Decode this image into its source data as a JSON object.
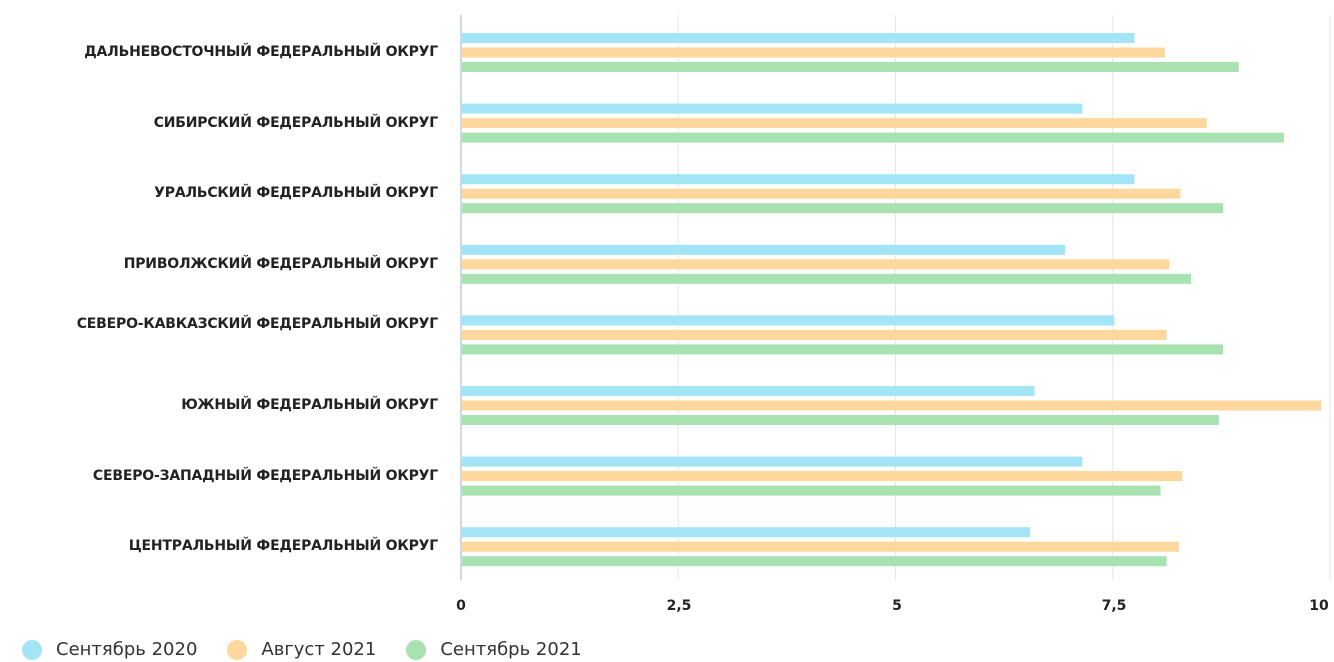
{
  "chart_data": {
    "type": "bar",
    "orientation": "horizontal",
    "categories": [
      "ДАЛЬНЕВОСТОЧНЫЙ ФЕДЕРАЛЬНЫЙ ОКРУГ",
      "СИБИРСКИЙ ФЕДЕРАЛЬНЫЙ ОКРУГ",
      "УРАЛЬСКИЙ ФЕДЕРАЛЬНЫЙ ОКРУГ",
      "ПРИВОЛЖСКИЙ ФЕДЕРАЛЬНЫЙ ОКРУГ",
      "СЕВЕРО-КАВКАЗСКИЙ ФЕДЕРАЛЬНЫЙ ОКРУГ",
      "ЮЖНЫЙ ФЕДЕРАЛЬНЫЙ ОКРУГ",
      "СЕВЕРО-ЗАПАДНЫЙ ФЕДЕРАЛЬНЫЙ ОКРУГ",
      "ЦЕНТРАЛЬНЫЙ ФЕДЕРАЛЬНЫЙ ОКРУГ"
    ],
    "series": [
      {
        "name": "Сентябрь 2020",
        "color": "#a3e4f7",
        "values": [
          7.75,
          7.15,
          7.75,
          6.95,
          7.52,
          6.6,
          7.15,
          6.55
        ]
      },
      {
        "name": "Август 2021",
        "color": "#fdd79b",
        "values": [
          8.1,
          8.58,
          8.28,
          8.15,
          8.12,
          9.9,
          8.3,
          8.26
        ]
      },
      {
        "name": "Сентябрь 2021",
        "color": "#a8e2b0",
        "values": [
          8.95,
          9.47,
          8.77,
          8.4,
          8.77,
          8.72,
          8.05,
          8.12
        ]
      }
    ],
    "xlim": [
      0,
      10
    ],
    "ticks": [
      "0",
      "2,5",
      "5",
      "7,5",
      "10"
    ],
    "tick_values": [
      0,
      2.5,
      5,
      7.5,
      10
    ],
    "grid": true,
    "legend_position": "bottom-left",
    "title": "",
    "xlabel": "",
    "ylabel": ""
  }
}
